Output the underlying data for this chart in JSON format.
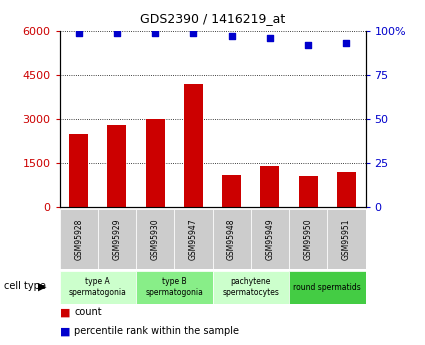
{
  "title": "GDS2390 / 1416219_at",
  "categories": [
    "GSM95928",
    "GSM95929",
    "GSM95930",
    "GSM95947",
    "GSM95948",
    "GSM95949",
    "GSM95950",
    "GSM95951"
  ],
  "counts": [
    2500,
    2800,
    3000,
    4200,
    1100,
    1400,
    1050,
    1200
  ],
  "percentile_ranks": [
    99,
    99,
    99,
    99,
    97,
    96,
    92,
    93
  ],
  "bar_color": "#cc0000",
  "dot_color": "#0000cc",
  "ylim_left": [
    0,
    6000
  ],
  "yticks_left": [
    0,
    1500,
    3000,
    4500,
    6000
  ],
  "ylim_right": [
    0,
    100
  ],
  "yticks_right": [
    0,
    25,
    50,
    75,
    100
  ],
  "cell_groups": [
    {
      "label": "type A\nspermatogonia",
      "start": 0,
      "end": 2,
      "color": "#ccffcc"
    },
    {
      "label": "type B\nspermatogonia",
      "start": 2,
      "end": 4,
      "color": "#88ee88"
    },
    {
      "label": "pachytene\nspermatocytes",
      "start": 4,
      "end": 6,
      "color": "#ccffcc"
    },
    {
      "label": "round spermatids",
      "start": 6,
      "end": 8,
      "color": "#44cc44"
    }
  ],
  "bar_color_red": "#cc0000",
  "dot_color_blue": "#0000cc",
  "background_color": "#ffffff",
  "sample_box_color": "#cccccc",
  "legend_count_label": "count",
  "legend_pct_label": "percentile rank within the sample",
  "cell_type_label": "cell type"
}
